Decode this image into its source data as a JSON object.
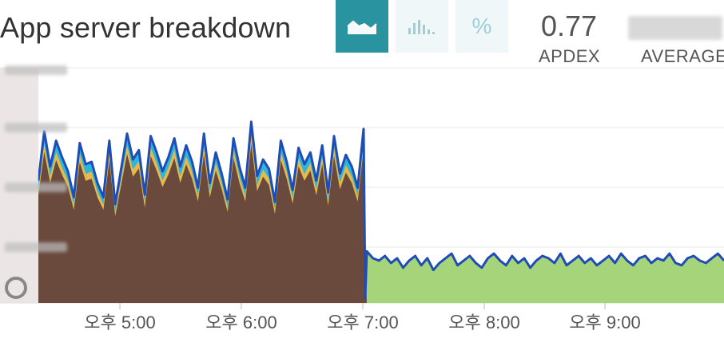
{
  "header": {
    "title": "App server breakdown",
    "view_buttons": [
      {
        "icon": "area-chart-icon",
        "active": true
      },
      {
        "icon": "histogram-icon",
        "active": false
      },
      {
        "icon": "percent-icon",
        "label": "%",
        "active": false
      }
    ]
  },
  "stats": {
    "apdex": {
      "value": "0.77",
      "label": "APDEX"
    },
    "average": {
      "label": "AVERAGE"
    }
  },
  "colors": {
    "accent": "#2a93a0",
    "app_brown": "#6b4a3e",
    "gold": "#e5b94a",
    "cyan": "#2db5dd",
    "blue_line": "#1f4db5",
    "green": "#a5d47a"
  },
  "chart_data": {
    "type": "area",
    "title": "App server breakdown",
    "x_ticks": [
      "오후 5:00",
      "오후 6:00",
      "오후 7:00",
      "오후 8:00",
      "오후 9:00"
    ],
    "x_range": [
      0,
      906
    ],
    "y_range": [
      0,
      100
    ],
    "grid": true,
    "stacking": "stacked",
    "phases": [
      {
        "color": "brown",
        "from": 48,
        "to": 455,
        "layers": [
          "brown",
          "gold",
          "cyan",
          "blue_line"
        ]
      },
      {
        "color": "green",
        "from": 455,
        "to": 906,
        "layers": [
          "green",
          "blue_line"
        ]
      }
    ],
    "total_before": [
      52,
      73,
      58,
      69,
      62,
      56,
      45,
      68,
      59,
      60,
      51,
      45,
      69,
      42,
      57,
      72,
      61,
      65,
      46,
      71,
      64,
      56,
      62,
      70,
      58,
      67,
      60,
      49,
      72,
      51,
      64,
      55,
      44,
      70,
      58,
      49,
      77,
      54,
      61,
      57,
      43,
      69,
      60,
      48,
      66,
      59,
      64,
      52,
      67,
      47,
      71,
      55,
      63,
      58,
      49,
      74
    ],
    "total_after": [
      22,
      19,
      18,
      20,
      17,
      19,
      15,
      18,
      20,
      16,
      19,
      14,
      17,
      19,
      21,
      16,
      18,
      20,
      17,
      15,
      19,
      21,
      18,
      16,
      20,
      17,
      19,
      15,
      18,
      20,
      19,
      17,
      21,
      16,
      18,
      20,
      17,
      19,
      16,
      18,
      20,
      17,
      21,
      18,
      16,
      19,
      20,
      17,
      19,
      18,
      21,
      17,
      16,
      19,
      20,
      18,
      17,
      19,
      21,
      18
    ],
    "after_start": 455,
    "dip_point": 459
  }
}
